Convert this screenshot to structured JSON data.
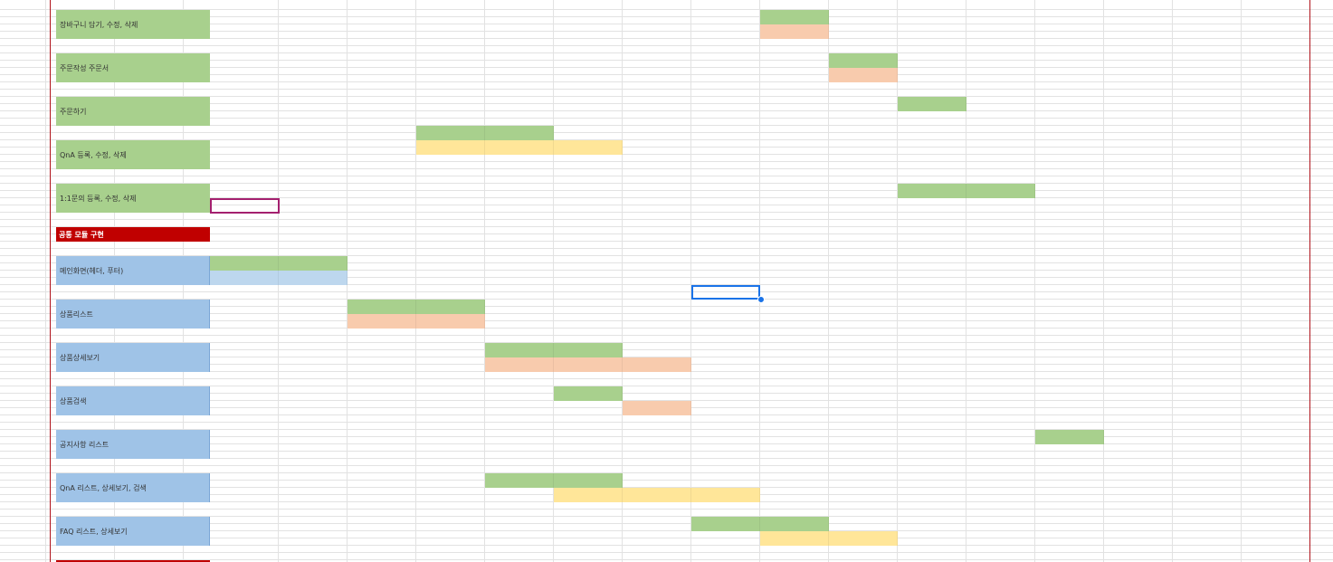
{
  "sheet": {
    "sections": [
      {
        "label": "공통 모듈 구현",
        "color": "#c00000"
      }
    ],
    "tasks": [
      {
        "label": "장바구니 담기, 수정, 삭제",
        "color": "#a8d08d"
      },
      {
        "label": "주문작성 주문서",
        "color": "#a8d08d"
      },
      {
        "label": "주문하기",
        "color": "#a8d08d"
      },
      {
        "label": "QnA 등록, 수정, 삭제",
        "color": "#a8d08d"
      },
      {
        "label": "1:1문의 등록, 수정, 삭제",
        "color": "#a8d08d"
      },
      {
        "label": "메인화면(헤더, 푸터)",
        "color": "#9fc3e7"
      },
      {
        "label": "상품리스트",
        "color": "#9fc3e7"
      },
      {
        "label": "상품상세보기",
        "color": "#9fc3e7"
      },
      {
        "label": "상품검색",
        "color": "#9fc3e7"
      },
      {
        "label": "공지사항 리스트",
        "color": "#9fc3e7"
      },
      {
        "label": "QnA 리스트, 상세보기, 검색",
        "color": "#9fc3e7"
      },
      {
        "label": "FAQ 리스트, 상세보기",
        "color": "#9fc3e7"
      }
    ],
    "bar_colors": {
      "green": "#a8d08d",
      "peach": "#f8cbad",
      "yellow": "#ffe699",
      "lightblue": "#bdd7ee"
    },
    "accent_colors": {
      "selection": "#1a73e8",
      "collaborator": "#a4206f",
      "print_border": "#b0141c"
    }
  }
}
